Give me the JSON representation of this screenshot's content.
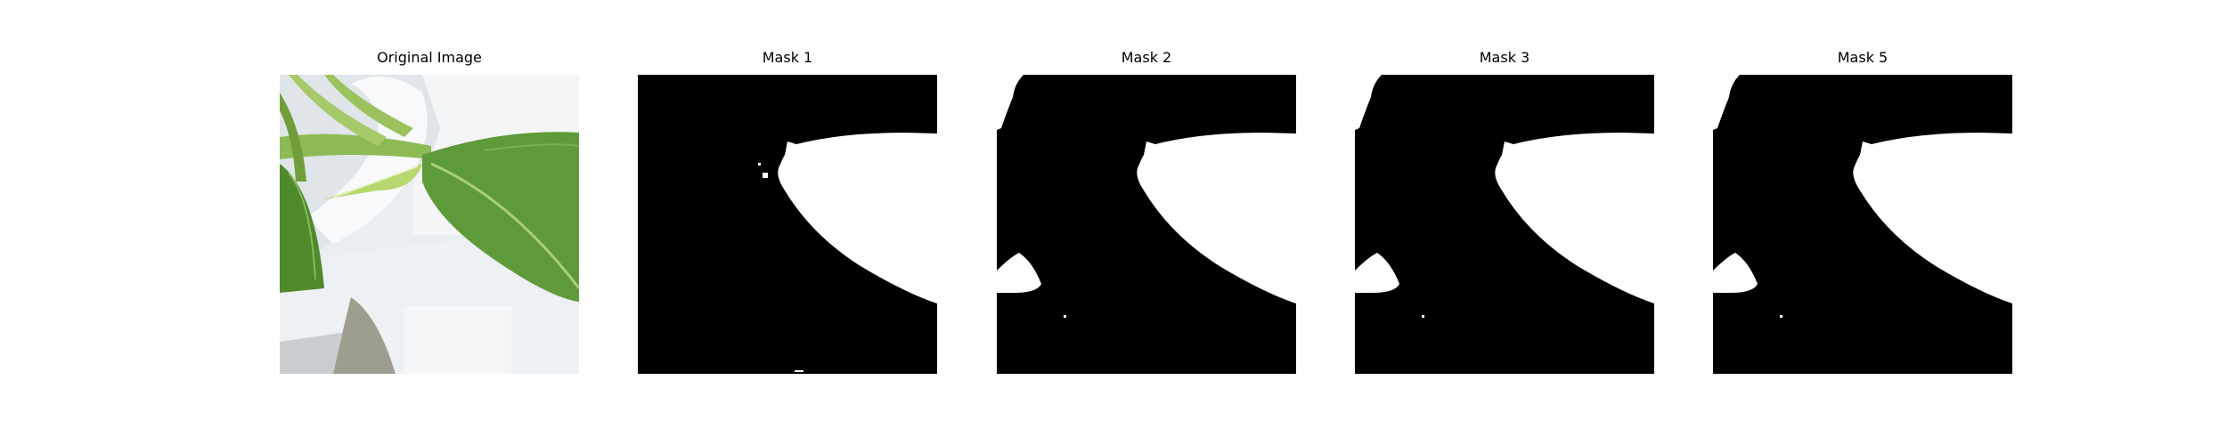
{
  "panels": [
    {
      "title": "Original Image",
      "kind": "photo"
    },
    {
      "title": "Mask 1",
      "kind": "mask"
    },
    {
      "title": "Mask 2",
      "kind": "mask"
    },
    {
      "title": "Mask 3",
      "kind": "mask"
    },
    {
      "title": "Mask 5",
      "kind": "mask"
    }
  ],
  "colors": {
    "mask_background": "#000000",
    "mask_foreground": "#ffffff",
    "leaf_green": "#5f9a3a",
    "background_white": "#e8ecef"
  }
}
